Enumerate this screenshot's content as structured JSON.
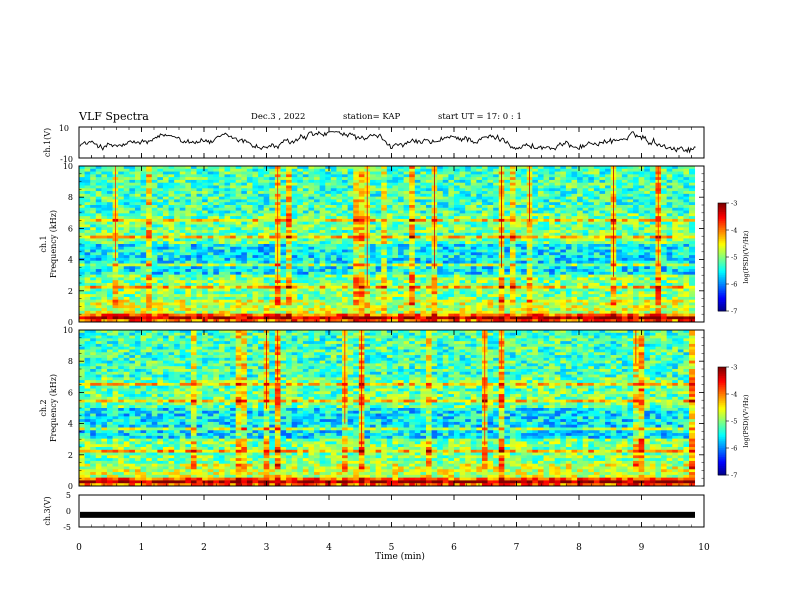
{
  "header": {
    "title": "VLF Spectra",
    "date": "Dec.3 , 2022",
    "station": "station= KAP",
    "start_ut": "start UT = 17: 0 : 1"
  },
  "chart_data": [
    {
      "type": "line",
      "panel": "ch1-waveform",
      "ylabel": "ch.1(V)",
      "ylim": [
        -10,
        10
      ],
      "yticks": [
        "10",
        "-10"
      ],
      "xlim": [
        0,
        10
      ],
      "series": [
        {
          "values_summary": "noisy waveform oscillating roughly between -6 and 6 V"
        }
      ],
      "line_color": "#000000"
    },
    {
      "type": "heatmap",
      "panel": "ch1-spectrogram",
      "ylabel": "ch.1\nFrequency (kHz)",
      "ylabel_top": "ch.1",
      "ylabel_bottom": "Frequency (kHz)",
      "ylim": [
        0,
        10
      ],
      "yticks": [
        "0",
        "2",
        "4",
        "6",
        "8",
        "10"
      ],
      "xlim": [
        0,
        9.85
      ],
      "colorbar": {
        "label": "log(PSD)(V²/Hz)",
        "range": [
          -7,
          -3
        ],
        "ticks": [
          "-3",
          "-4",
          "-5",
          "-6",
          "-7"
        ]
      }
    },
    {
      "type": "heatmap",
      "panel": "ch2-spectrogram",
      "ylabel_top": "ch.2",
      "ylabel_bottom": "Frequency (kHz)",
      "ylim": [
        0,
        10
      ],
      "yticks": [
        "0",
        "2",
        "4",
        "6",
        "8",
        "10"
      ],
      "xlim": [
        0,
        9.85
      ],
      "colorbar": {
        "label": "log(PSD)(V²/Hz)",
        "range": [
          -7,
          -3
        ],
        "ticks": [
          "-3",
          "-4",
          "-5",
          "-6",
          "-7"
        ]
      }
    },
    {
      "type": "line",
      "panel": "ch3-waveform",
      "ylabel": "ch.3(V)",
      "ylim": [
        -5,
        5
      ],
      "yticks": [
        "5",
        "0",
        "-5"
      ],
      "xlim": [
        0,
        10
      ],
      "series": [
        {
          "values_summary": "flat signal near -1 V"
        }
      ],
      "line_color": "#000000"
    }
  ],
  "xaxis": {
    "label": "Time (min)",
    "ticks": [
      "0",
      "1",
      "2",
      "3",
      "4",
      "5",
      "6",
      "7",
      "8",
      "9",
      "10"
    ],
    "range": [
      0,
      10
    ]
  },
  "colors": {
    "line": "#000000",
    "background": "#ffffff"
  }
}
